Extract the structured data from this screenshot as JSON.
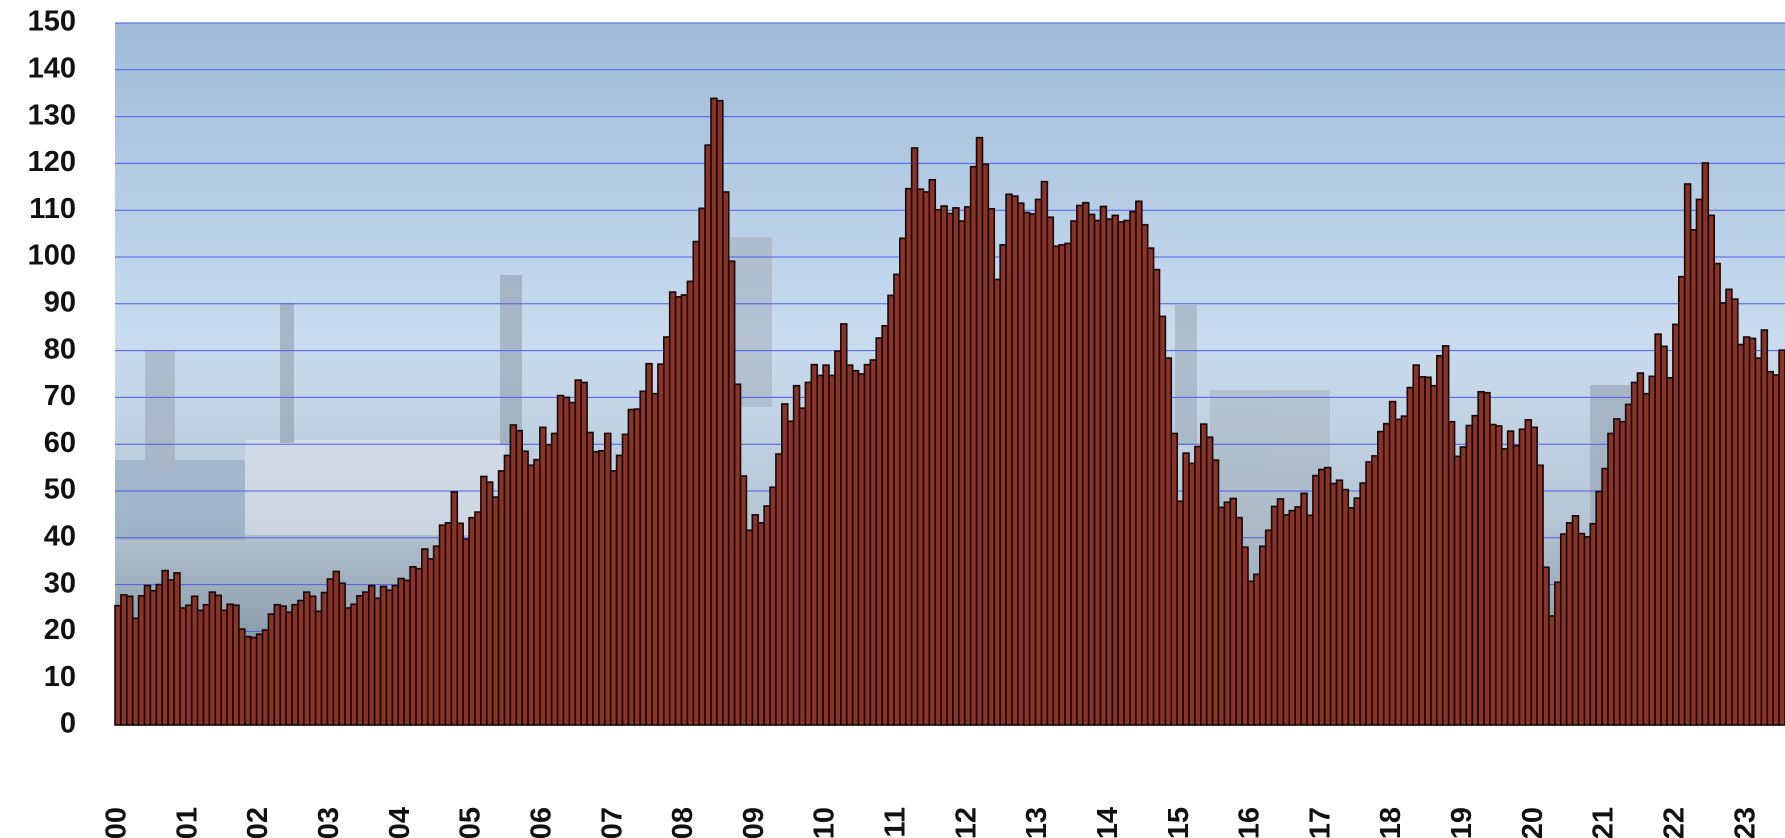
{
  "chart_data": {
    "type": "bar",
    "categories": [
      "2000",
      null,
      null,
      null,
      null,
      null,
      null,
      null,
      null,
      null,
      null,
      null,
      "2001",
      null,
      null,
      null,
      null,
      null,
      null,
      null,
      null,
      null,
      null,
      null,
      "2002",
      null,
      null,
      null,
      null,
      null,
      null,
      null,
      null,
      null,
      null,
      null,
      "2003",
      null,
      null,
      null,
      null,
      null,
      null,
      null,
      null,
      null,
      null,
      null,
      "2004",
      null,
      null,
      null,
      null,
      null,
      null,
      null,
      null,
      null,
      null,
      null,
      "2005",
      null,
      null,
      null,
      null,
      null,
      null,
      null,
      null,
      null,
      null,
      null,
      "2006",
      null,
      null,
      null,
      null,
      null,
      null,
      null,
      null,
      null,
      null,
      null,
      "2007",
      null,
      null,
      null,
      null,
      null,
      null,
      null,
      null,
      null,
      null,
      null,
      "2008",
      null,
      null,
      null,
      null,
      null,
      null,
      null,
      null,
      null,
      null,
      null,
      "2009",
      null,
      null,
      null,
      null,
      null,
      null,
      null,
      null,
      null,
      null,
      null,
      "2010",
      null,
      null,
      null,
      null,
      null,
      null,
      null,
      null,
      null,
      null,
      null,
      "2011",
      null,
      null,
      null,
      null,
      null,
      null,
      null,
      null,
      null,
      null,
      null,
      "2012",
      null,
      null,
      null,
      null,
      null,
      null,
      null,
      null,
      null,
      null,
      null,
      "2013",
      null,
      null,
      null,
      null,
      null,
      null,
      null,
      null,
      null,
      null,
      null,
      "2014",
      null,
      null,
      null,
      null,
      null,
      null,
      null,
      null,
      null,
      null,
      null,
      "2015",
      null,
      null,
      null,
      null,
      null,
      null,
      null,
      null,
      null,
      null,
      null,
      "2016",
      null,
      null,
      null,
      null,
      null,
      null,
      null,
      null,
      null,
      null,
      null,
      "2017",
      null,
      null,
      null,
      null,
      null,
      null,
      null,
      null,
      null,
      null,
      null,
      "2018",
      null,
      null,
      null,
      null,
      null,
      null,
      null,
      null,
      null,
      null,
      null,
      "2019",
      null,
      null,
      null,
      null,
      null,
      null,
      null,
      null,
      null,
      null,
      null,
      "2020",
      null,
      null,
      null,
      null,
      null,
      null,
      null,
      null,
      null,
      null,
      null,
      "2021",
      null,
      null,
      null,
      null,
      null,
      null,
      null,
      null,
      null,
      null,
      null,
      "2022",
      null,
      null,
      null,
      null,
      null,
      null,
      null,
      null,
      null,
      null,
      null,
      "2023",
      null,
      null,
      null,
      null,
      null,
      null
    ],
    "values": [
      25.5,
      27.8,
      27.5,
      22.8,
      27.6,
      29.8,
      28.7,
      30,
      33,
      31,
      32.5,
      25,
      25.6,
      27.5,
      24.5,
      25.7,
      28.4,
      27.7,
      24.5,
      25.8,
      25.6,
      20.5,
      18.9,
      18.7,
      19.4,
      20.3,
      23.7,
      25.7,
      25.4,
      24.1,
      25.7,
      26.6,
      28.4,
      27.5,
      24.3,
      28.3,
      31.2,
      32.8,
      30.3,
      25,
      25.8,
      27.6,
      28.4,
      29.8,
      27.1,
      29.6,
      28.8,
      29.8,
      31.3,
      30.9,
      33.8,
      33.4,
      37.6,
      35.5,
      38.2,
      42.7,
      43.2,
      49.8,
      43.1,
      39.7,
      44.3,
      45.5,
      53.1,
      51.9,
      48.7,
      54.3,
      57.6,
      64.1,
      62.9,
      58.5,
      55.5,
      56.7,
      63.6,
      59.9,
      62.3,
      70.4,
      70,
      68.9,
      73.7,
      73.2,
      62.5,
      58.4,
      58.6,
      62.3,
      54.3,
      57.6,
      62.1,
      67.4,
      67.5,
      71.3,
      77.2,
      70.8,
      77.1,
      82.9,
      92.5,
      91.5,
      91.9,
      94.8,
      103.3,
      110.4,
      123.9,
      133.9,
      133.4,
      113.9,
      99.1,
      72.8,
      53.2,
      41.6,
      44.9,
      43.2,
      46.8,
      50.8,
      57.9,
      68.6,
      64.9,
      72.5,
      67.7,
      73.2,
      77,
      74.7,
      76.9,
      74.7,
      79.9,
      85.7,
      76.9,
      75.7,
      75,
      77,
      78,
      82.7,
      85.3,
      91.8,
      96.3,
      104,
      114.6,
      123.3,
      114.5,
      113.9,
      116.5,
      110.1,
      110.9,
      109.3,
      110.5,
      107.7,
      110.7,
      119.3,
      125.5,
      119.8,
      110.3,
      95.2,
      102.6,
      113.4,
      113,
      111.5,
      109.5,
      109.2,
      112.3,
      116.1,
      108.5,
      102.3,
      102.6,
      102.9,
      107.7,
      111,
      111.6,
      109.1,
      107.8,
      110.8,
      108.1,
      108.9,
      107.5,
      107.8,
      109.7,
      111.9,
      106.9,
      101.9,
      97.3,
      87.3,
      78.4,
      62.3,
      47.8,
      58.1,
      55.9,
      59.5,
      64.3,
      61.5,
      56.6,
      46.5,
      47.6,
      48.4,
      44.3,
      38,
      30.7,
      32.2,
      38.2,
      41.6,
      46.7,
      48.3,
      44.9,
      45.8,
      46.6,
      49.5,
      44.8,
      53.3,
      54.6,
      55,
      51.6,
      52.3,
      50.3,
      46.4,
      48.5,
      51.7,
      56.2,
      57.5,
      62.7,
      64.4,
      69.1,
      65.3,
      66,
      72.1,
      76.9,
      74.4,
      74.3,
      72.5,
      78.9,
      81,
      64.8,
      57.4,
      59.4,
      64,
      66.1,
      71.2,
      71,
      64.2,
      63.9,
      59,
      62.8,
      59.7,
      63.2,
      65.2,
      63.6,
      55.5,
      33.7,
      23.3,
      30.5,
      40.8,
      43.2,
      44.7,
      40.9,
      40.2,
      43,
      49.9,
      54.8,
      62.3,
      65.4,
      64.8,
      68.5,
      73.2,
      75.2,
      70.8,
      74.5,
      83.5,
      80.9,
      74.2,
      85.6,
      95.8,
      115.6,
      105.8,
      112.3,
      120.1,
      108.9,
      98.6,
      90.2,
      93.1,
      91,
      81.3,
      82.9,
      82.6,
      78.4,
      84.4,
      75.5,
      74.8,
      80.1
    ],
    "color": "#8a3326",
    "ylim": [
      0,
      150
    ],
    "yticks": [
      0,
      10,
      20,
      30,
      40,
      50,
      60,
      70,
      80,
      90,
      100,
      110,
      120,
      130,
      140,
      150
    ],
    "grid": true
  }
}
